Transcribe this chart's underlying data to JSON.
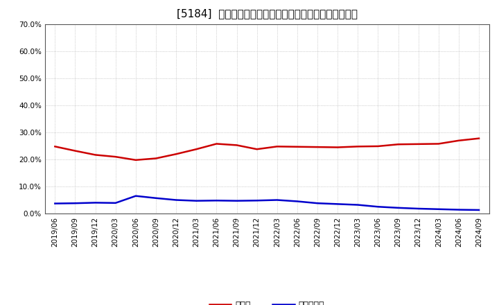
{
  "title": "[5184]  現頓金、有利子負債の総資産に対する比率の推移",
  "x_labels": [
    "2019/06",
    "2019/09",
    "2019/12",
    "2020/03",
    "2020/06",
    "2020/09",
    "2020/12",
    "2021/03",
    "2021/06",
    "2021/09",
    "2021/12",
    "2022/03",
    "2022/06",
    "2022/09",
    "2022/12",
    "2023/03",
    "2023/06",
    "2023/09",
    "2023/12",
    "2024/03",
    "2024/06",
    "2024/09"
  ],
  "cash_ratio": [
    0.248,
    0.232,
    0.217,
    0.21,
    0.198,
    0.204,
    0.22,
    0.238,
    0.258,
    0.253,
    0.238,
    0.248,
    0.247,
    0.246,
    0.245,
    0.248,
    0.249,
    0.256,
    0.257,
    0.258,
    0.27,
    0.278
  ],
  "debt_ratio": [
    0.037,
    0.038,
    0.04,
    0.039,
    0.065,
    0.057,
    0.05,
    0.047,
    0.048,
    0.047,
    0.048,
    0.05,
    0.045,
    0.038,
    0.035,
    0.032,
    0.025,
    0.021,
    0.018,
    0.016,
    0.014,
    0.013
  ],
  "cash_color": "#cc0000",
  "debt_color": "#0000cc",
  "background_color": "#ffffff",
  "grid_color": "#aaaaaa",
  "ylim": [
    0.0,
    0.7
  ],
  "yticks": [
    0.0,
    0.1,
    0.2,
    0.3,
    0.4,
    0.5,
    0.6,
    0.7
  ],
  "legend_cash": "現頓金",
  "legend_debt": "有利子負債",
  "title_fontsize": 11,
  "legend_fontsize": 9,
  "tick_fontsize": 7.5
}
